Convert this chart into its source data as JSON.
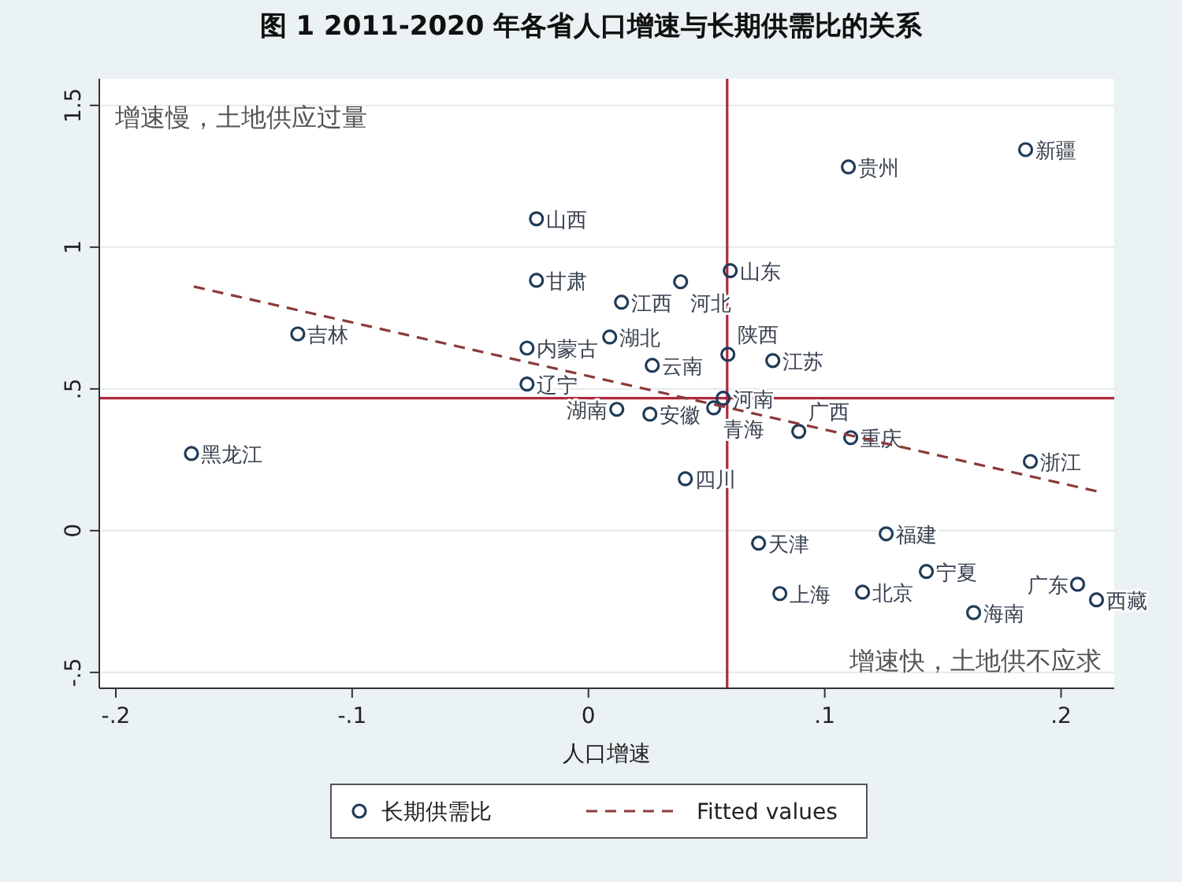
{
  "chart_data": {
    "type": "scatter",
    "title": "图 1 2011-2020 年各省人口增速与长期供需比的关系",
    "xlabel": "人口增速",
    "annotations": [
      "增速慢，土地供应过量",
      "增速快，土地供不应求"
    ],
    "xlim": [
      -0.207,
      0.2225
    ],
    "ylim": [
      -0.556,
      1.594
    ],
    "xticks": [
      {
        "value": -0.2,
        "label": "-.2"
      },
      {
        "value": -0.1,
        "label": "-.1"
      },
      {
        "value": 0,
        "label": "0"
      },
      {
        "value": 0.1,
        "label": ".1"
      },
      {
        "value": 0.2,
        "label": ".2"
      }
    ],
    "yticks": [
      {
        "value": -0.5,
        "label": "-.5"
      },
      {
        "value": 0,
        "label": "0"
      },
      {
        "value": 0.5,
        "label": ".5"
      },
      {
        "value": 1,
        "label": "1"
      },
      {
        "value": 1.5,
        "label": "1.5"
      }
    ],
    "grid": "y",
    "legend": "bottom",
    "ref_lines": [
      {
        "axis": "x",
        "value": 0.0587,
        "color": "#b0283c"
      },
      {
        "axis": "y",
        "value": 0.467,
        "color": "#b0283c"
      }
    ],
    "series": [
      {
        "name": "长期供需比",
        "type": "scatter",
        "marker": "circle",
        "color": "#1f3b57",
        "x": [
          -0.022,
          -0.022,
          0.014,
          0.009,
          -0.026,
          -0.123,
          -0.026,
          0.027,
          0.039,
          0.06,
          0.059,
          0.078,
          0.11,
          0.185,
          -0.168,
          0.012,
          0.026,
          0.057,
          0.053,
          0.089,
          0.111,
          0.187,
          0.041,
          0.072,
          0.126,
          0.143,
          0.081,
          0.116,
          0.163,
          0.207,
          0.215
        ],
        "values": [
          1.1,
          0.883,
          0.806,
          0.683,
          0.644,
          0.694,
          0.517,
          0.583,
          0.878,
          0.917,
          0.622,
          0.6,
          1.283,
          1.344,
          0.272,
          0.428,
          0.411,
          0.467,
          0.433,
          0.35,
          0.328,
          0.244,
          0.183,
          -0.044,
          -0.011,
          -0.144,
          -0.222,
          -0.217,
          -0.289,
          -0.189,
          -0.244
        ],
        "value_labels": [
          "山西",
          "甘肃",
          "江西",
          "湖北",
          "内蒙古",
          "吉林",
          "辽宁",
          "云南",
          "河北",
          "山东",
          "陕西",
          "江苏",
          "贵州",
          "新疆",
          "黑龙江",
          "湖南",
          "安徽",
          "河南",
          "青海",
          "广西",
          "重庆",
          "浙江",
          "四川",
          "天津",
          "福建",
          "宁夏",
          "上海",
          "北京",
          "海南",
          "广东",
          "西藏"
        ]
      },
      {
        "name": "Fitted values",
        "type": "line",
        "color": "#8b3a3a",
        "line_style": "dashed",
        "x": [
          -0.167,
          0.215
        ],
        "values": [
          0.861,
          0.139
        ]
      }
    ]
  }
}
